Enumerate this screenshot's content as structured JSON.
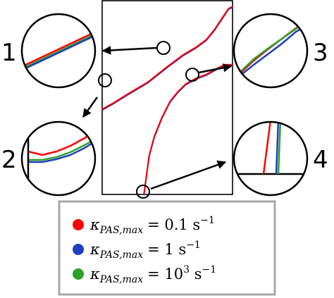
{
  "chart_data": {
    "type": "line",
    "title": "",
    "xlabel": "",
    "ylabel": "",
    "grid": false,
    "legend_position": "bottom",
    "series": [
      {
        "symbol": "κ",
        "subscript": "PAS,max",
        "value": "= 0.1 s",
        "exponent": "−1",
        "color": "#ff0000"
      },
      {
        "symbol": "κ",
        "subscript": "PAS,max",
        "value": "= 1 s",
        "exponent": "−1",
        "color": "#1f3fbf"
      },
      {
        "symbol": "κ",
        "subscript": "PAS,max",
        "value": "= 10",
        "value_exponent": "3",
        "value_unit": " s",
        "exponent": "−1",
        "color": "#2ca02c"
      }
    ],
    "curves": [
      {
        "id": "upper",
        "points": [
          [
            0.0,
            0.44
          ],
          [
            0.08,
            0.47
          ],
          [
            0.2,
            0.52
          ],
          [
            0.35,
            0.58
          ],
          [
            0.5,
            0.66
          ],
          [
            0.62,
            0.72
          ],
          [
            0.72,
            0.76
          ],
          [
            0.8,
            0.8
          ],
          [
            0.86,
            0.85
          ],
          [
            0.9,
            0.89
          ],
          [
            0.94,
            0.93
          ],
          [
            0.97,
            0.96
          ],
          [
            1.0,
            0.97
          ]
        ]
      },
      {
        "id": "lower",
        "points": [
          [
            0.32,
            0.0
          ],
          [
            0.33,
            0.05
          ],
          [
            0.34,
            0.1
          ],
          [
            0.36,
            0.2
          ],
          [
            0.4,
            0.3
          ],
          [
            0.46,
            0.4
          ],
          [
            0.52,
            0.48
          ],
          [
            0.58,
            0.53
          ],
          [
            0.64,
            0.57
          ],
          [
            0.72,
            0.6
          ],
          [
            0.8,
            0.62
          ],
          [
            0.88,
            0.65
          ],
          [
            0.94,
            0.67
          ],
          [
            1.0,
            0.67
          ]
        ]
      }
    ],
    "zoom_labels": [
      "1",
      "2",
      "3",
      "4"
    ]
  }
}
